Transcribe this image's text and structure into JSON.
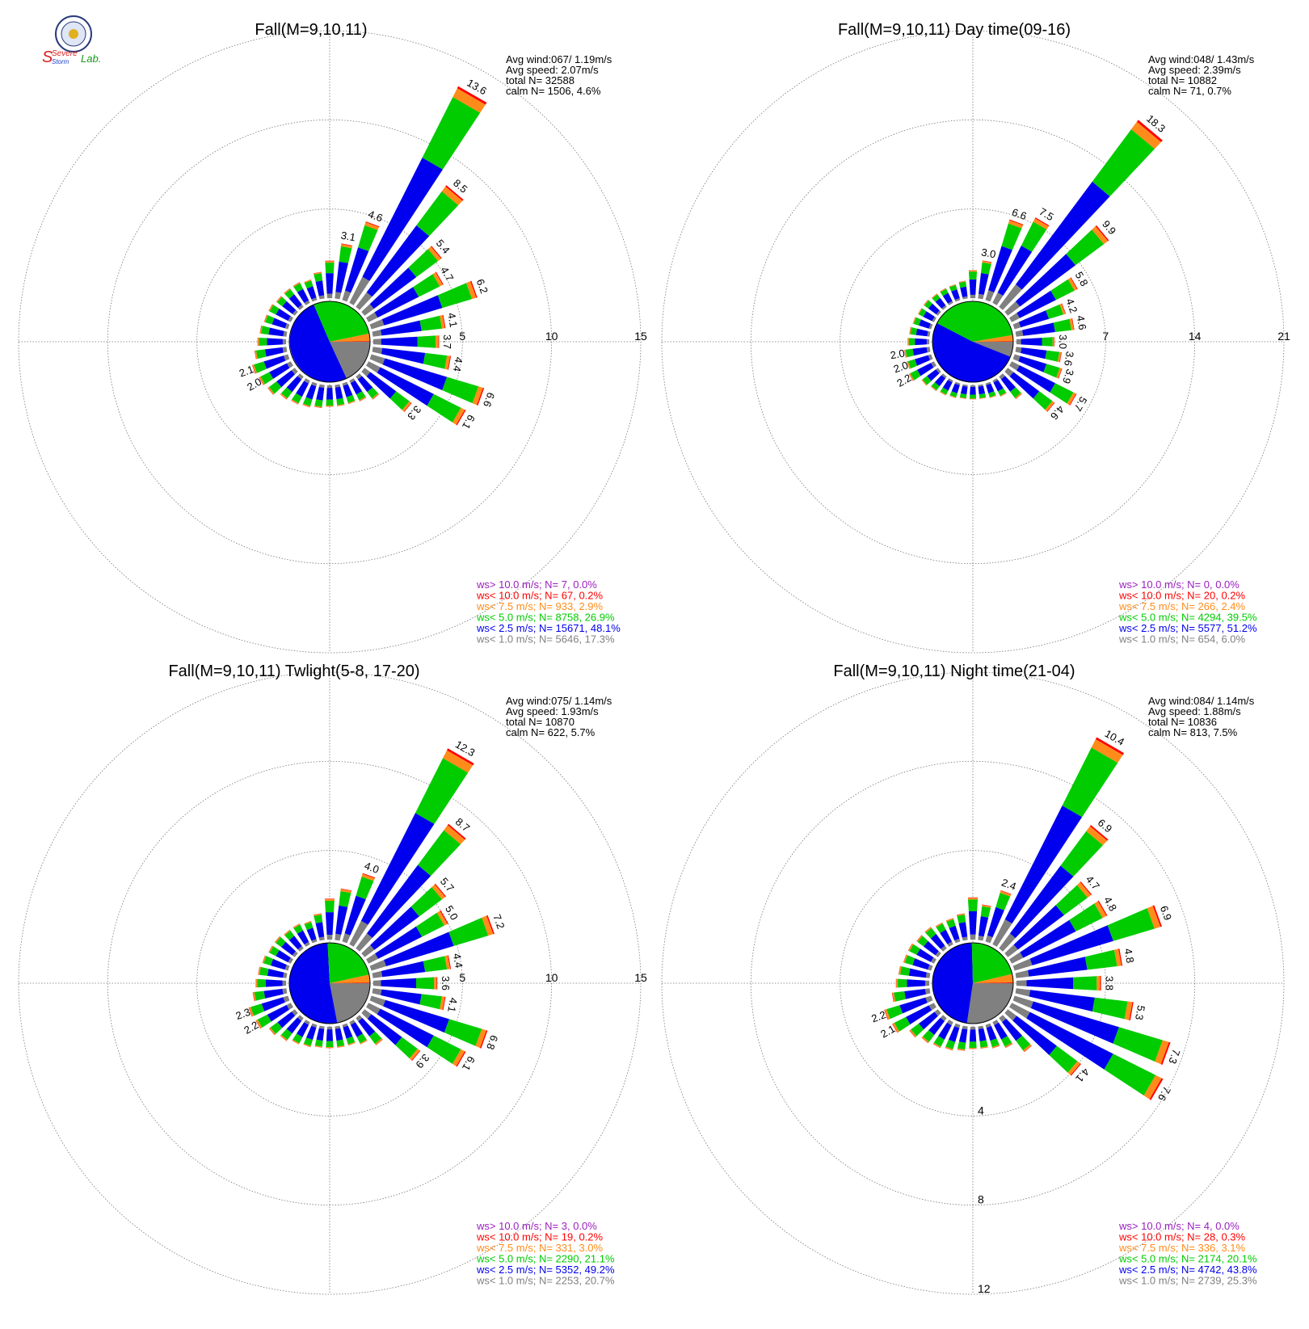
{
  "logo": {
    "text_lines": [
      "Severe",
      "Storm",
      "Lab."
    ],
    "colors": {
      "s": "#d62020",
      "storm": "#1c3cc8",
      "lab": "#1a9a1a",
      "seal": "#2a3a7a"
    }
  },
  "colors": {
    "gt10": "#9b1fbf",
    "lt10": "#ff0000",
    "lt75": "#ff8c1a",
    "lt5": "#00cc00",
    "lt25": "#0000ee",
    "lt1": "#808080",
    "grid": "#777777",
    "text": "#000000"
  },
  "chart_data": [
    {
      "type": "polar-bar",
      "title": "Fall(M=9,10,11)",
      "rings": [
        "5",
        "10",
        "15"
      ],
      "rmax": 15,
      "stats": [
        "Avg wind:067/ 1.19m/s",
        "Avg speed: 2.07m/s",
        "total N=      32588",
        "calm N=   1506,   4.6%"
      ],
      "legend": [
        {
          "text": "ws> 10.0 m/s; N=     7,  0.0%",
          "color": "gt10"
        },
        {
          "text": "ws< 10.0 m/s; N=    67,  0.2%",
          "color": "lt10"
        },
        {
          "text": "ws<  7.5 m/s; N=   933,  2.9%",
          "color": "lt75"
        },
        {
          "text": "ws<  5.0 m/s; N=  8758, 26.9%",
          "color": "lt5"
        },
        {
          "text": "ws<  2.5 m/s; N= 15671, 48.1%",
          "color": "lt25"
        },
        {
          "text": "ws<  1.0 m/s; N=  5646, 17.3%",
          "color": "lt1"
        }
      ],
      "center_pie": [
        17.3,
        48.1,
        26.9,
        2.9,
        0.2,
        0.0
      ],
      "bars": [
        {
          "dir": 10,
          "total": 3.1,
          "label": "3.1"
        },
        {
          "dir": 20,
          "total": 4.6,
          "label": "4.6"
        },
        {
          "dir": 30,
          "total": 13.6,
          "label": "13.6"
        },
        {
          "dir": 40,
          "total": 8.5,
          "label": "8.5"
        },
        {
          "dir": 50,
          "total": 5.4,
          "label": "5.4"
        },
        {
          "dir": 60,
          "total": 4.7,
          "label": "4.7"
        },
        {
          "dir": 70,
          "total": 6.2,
          "label": "6.2"
        },
        {
          "dir": 80,
          "total": 4.1,
          "label": "4.1"
        },
        {
          "dir": 90,
          "total": 3.7,
          "label": "3.7"
        },
        {
          "dir": 100,
          "total": 4.4,
          "label": "4.4"
        },
        {
          "dir": 110,
          "total": 6.6,
          "label": "6.6"
        },
        {
          "dir": 120,
          "total": 6.1,
          "label": "6.1"
        },
        {
          "dir": 130,
          "total": 3.3,
          "label": "3.3"
        },
        {
          "dir": 140,
          "total": 1.6,
          "label": ""
        },
        {
          "dir": 150,
          "total": 1.3,
          "label": ""
        },
        {
          "dir": 160,
          "total": 1.2,
          "label": ""
        },
        {
          "dir": 170,
          "total": 1.2,
          "label": ""
        },
        {
          "dir": 180,
          "total": 1.2,
          "label": ""
        },
        {
          "dir": 190,
          "total": 1.3,
          "label": ""
        },
        {
          "dir": 200,
          "total": 1.4,
          "label": ""
        },
        {
          "dir": 210,
          "total": 1.5,
          "label": ""
        },
        {
          "dir": 220,
          "total": 1.6,
          "label": ""
        },
        {
          "dir": 230,
          "total": 1.9,
          "label": ""
        },
        {
          "dir": 240,
          "total": 2.0,
          "label": "2.0"
        },
        {
          "dir": 250,
          "total": 2.1,
          "label": "2.1"
        },
        {
          "dir": 260,
          "total": 1.8,
          "label": ""
        },
        {
          "dir": 270,
          "total": 1.6,
          "label": ""
        },
        {
          "dir": 280,
          "total": 1.5,
          "label": ""
        },
        {
          "dir": 290,
          "total": 1.4,
          "label": ""
        },
        {
          "dir": 300,
          "total": 1.4,
          "label": ""
        },
        {
          "dir": 310,
          "total": 1.3,
          "label": ""
        },
        {
          "dir": 320,
          "total": 1.3,
          "label": ""
        },
        {
          "dir": 330,
          "total": 1.3,
          "label": ""
        },
        {
          "dir": 340,
          "total": 1.2,
          "label": ""
        },
        {
          "dir": 350,
          "total": 1.5,
          "label": ""
        },
        {
          "dir": 360,
          "total": 2.1,
          "label": ""
        }
      ]
    },
    {
      "type": "polar-bar",
      "title": "Fall(M=9,10,11) Day time(09-16)",
      "rings": [
        "7",
        "14",
        "21"
      ],
      "rmax": 21,
      "stats": [
        "Avg wind:048/ 1.43m/s",
        "Avg speed: 2.39m/s",
        "total N=      10882",
        "calm N=     71,   0.7%"
      ],
      "legend": [
        {
          "text": "ws> 10.0 m/s; N=     0,  0.0%",
          "color": "gt10"
        },
        {
          "text": "ws< 10.0 m/s; N=    20,  0.2%",
          "color": "lt10"
        },
        {
          "text": "ws<  7.5 m/s; N=   266,  2.4%",
          "color": "lt75"
        },
        {
          "text": "ws<  5.0 m/s; N=  4294, 39.5%",
          "color": "lt5"
        },
        {
          "text": "ws<  2.5 m/s; N=  5577, 51.2%",
          "color": "lt25"
        },
        {
          "text": "ws<  1.0 m/s; N=   654,  6.0%",
          "color": "lt1"
        }
      ],
      "center_pie": [
        6.0,
        51.2,
        39.5,
        2.4,
        0.2,
        0.0
      ],
      "bars": [
        {
          "dir": 10,
          "total": 3.0,
          "label": "3.0"
        },
        {
          "dir": 20,
          "total": 6.6,
          "label": "6.6"
        },
        {
          "dir": 30,
          "total": 7.5,
          "label": "7.5"
        },
        {
          "dir": 40,
          "total": 18.3,
          "label": "18.3"
        },
        {
          "dir": 50,
          "total": 9.9,
          "label": "9.9"
        },
        {
          "dir": 60,
          "total": 5.8,
          "label": "5.8"
        },
        {
          "dir": 70,
          "total": 4.2,
          "label": "4.2"
        },
        {
          "dir": 80,
          "total": 4.6,
          "label": "4.6"
        },
        {
          "dir": 90,
          "total": 3.0,
          "label": "3.0"
        },
        {
          "dir": 100,
          "total": 3.6,
          "label": "3.6"
        },
        {
          "dir": 110,
          "total": 3.9,
          "label": "3.9"
        },
        {
          "dir": 120,
          "total": 5.7,
          "label": "5.7"
        },
        {
          "dir": 130,
          "total": 4.6,
          "label": "4.6"
        },
        {
          "dir": 140,
          "total": 2.2,
          "label": ""
        },
        {
          "dir": 150,
          "total": 1.4,
          "label": ""
        },
        {
          "dir": 160,
          "total": 1.2,
          "label": ""
        },
        {
          "dir": 170,
          "total": 1.1,
          "label": ""
        },
        {
          "dir": 180,
          "total": 1.1,
          "label": ""
        },
        {
          "dir": 190,
          "total": 1.1,
          "label": ""
        },
        {
          "dir": 200,
          "total": 1.2,
          "label": ""
        },
        {
          "dir": 210,
          "total": 1.3,
          "label": ""
        },
        {
          "dir": 220,
          "total": 1.4,
          "label": ""
        },
        {
          "dir": 230,
          "total": 1.6,
          "label": ""
        },
        {
          "dir": 240,
          "total": 2.2,
          "label": "2.2"
        },
        {
          "dir": 250,
          "total": 2.0,
          "label": "2.0"
        },
        {
          "dir": 260,
          "total": 2.0,
          "label": "2.0"
        },
        {
          "dir": 270,
          "total": 1.7,
          "label": ""
        },
        {
          "dir": 280,
          "total": 1.6,
          "label": ""
        },
        {
          "dir": 290,
          "total": 1.5,
          "label": ""
        },
        {
          "dir": 300,
          "total": 1.4,
          "label": ""
        },
        {
          "dir": 310,
          "total": 1.4,
          "label": ""
        },
        {
          "dir": 320,
          "total": 1.3,
          "label": ""
        },
        {
          "dir": 330,
          "total": 1.3,
          "label": ""
        },
        {
          "dir": 340,
          "total": 1.3,
          "label": ""
        },
        {
          "dir": 350,
          "total": 1.4,
          "label": ""
        },
        {
          "dir": 360,
          "total": 2.2,
          "label": ""
        }
      ]
    },
    {
      "type": "polar-bar",
      "title": "Fall(M=9,10,11) Twlight(5-8, 17-20)",
      "rings": [
        "5",
        "10",
        "15"
      ],
      "rmax": 15,
      "stats": [
        "Avg wind:075/ 1.14m/s",
        "Avg speed: 1.93m/s",
        "total N=      10870",
        "calm N=    622,   5.7%"
      ],
      "legend": [
        {
          "text": "ws> 10.0 m/s; N=     3,  0.0%",
          "color": "gt10"
        },
        {
          "text": "ws< 10.0 m/s; N=    19,  0.2%",
          "color": "lt10"
        },
        {
          "text": "ws<  7.5 m/s; N=   331,  3.0%",
          "color": "lt75"
        },
        {
          "text": "ws<  5.0 m/s; N=  2290, 21.1%",
          "color": "lt5"
        },
        {
          "text": "ws<  2.5 m/s; N=  5352, 49.2%",
          "color": "lt25"
        },
        {
          "text": "ws<  1.0 m/s; N=  2253, 20.7%",
          "color": "lt1"
        }
      ],
      "center_pie": [
        20.7,
        49.2,
        21.1,
        3.0,
        0.2,
        0.0
      ],
      "bars": [
        {
          "dir": 10,
          "total": 2.9,
          "label": ""
        },
        {
          "dir": 20,
          "total": 4.0,
          "label": "4.0"
        },
        {
          "dir": 30,
          "total": 12.3,
          "label": "12.3"
        },
        {
          "dir": 40,
          "total": 8.7,
          "label": "8.7"
        },
        {
          "dir": 50,
          "total": 5.7,
          "label": "5.7"
        },
        {
          "dir": 60,
          "total": 5.0,
          "label": "5.0"
        },
        {
          "dir": 70,
          "total": 7.2,
          "label": "7.2"
        },
        {
          "dir": 80,
          "total": 4.4,
          "label": "4.4"
        },
        {
          "dir": 90,
          "total": 3.6,
          "label": "3.6"
        },
        {
          "dir": 100,
          "total": 4.1,
          "label": "4.1"
        },
        {
          "dir": 110,
          "total": 6.8,
          "label": "6.8"
        },
        {
          "dir": 120,
          "total": 6.1,
          "label": "6.1"
        },
        {
          "dir": 130,
          "total": 3.9,
          "label": "3.9"
        },
        {
          "dir": 140,
          "total": 1.9,
          "label": ""
        },
        {
          "dir": 150,
          "total": 1.4,
          "label": ""
        },
        {
          "dir": 160,
          "total": 1.2,
          "label": ""
        },
        {
          "dir": 170,
          "total": 1.2,
          "label": ""
        },
        {
          "dir": 180,
          "total": 1.2,
          "label": ""
        },
        {
          "dir": 190,
          "total": 1.2,
          "label": ""
        },
        {
          "dir": 200,
          "total": 1.3,
          "label": ""
        },
        {
          "dir": 210,
          "total": 1.4,
          "label": ""
        },
        {
          "dir": 220,
          "total": 1.6,
          "label": ""
        },
        {
          "dir": 230,
          "total": 1.8,
          "label": ""
        },
        {
          "dir": 240,
          "total": 2.2,
          "label": "2.2"
        },
        {
          "dir": 250,
          "total": 2.3,
          "label": "2.3"
        },
        {
          "dir": 260,
          "total": 1.9,
          "label": ""
        },
        {
          "dir": 270,
          "total": 1.7,
          "label": ""
        },
        {
          "dir": 280,
          "total": 1.6,
          "label": ""
        },
        {
          "dir": 290,
          "total": 1.5,
          "label": ""
        },
        {
          "dir": 300,
          "total": 1.4,
          "label": ""
        },
        {
          "dir": 310,
          "total": 1.4,
          "label": ""
        },
        {
          "dir": 320,
          "total": 1.3,
          "label": ""
        },
        {
          "dir": 330,
          "total": 1.3,
          "label": ""
        },
        {
          "dir": 340,
          "total": 1.2,
          "label": ""
        },
        {
          "dir": 350,
          "total": 1.5,
          "label": ""
        },
        {
          "dir": 360,
          "total": 2.3,
          "label": ""
        }
      ]
    },
    {
      "type": "polar-bar",
      "title": "Fall(M=9,10,11) Night time(21-04)",
      "rings": [
        "4",
        "8",
        "12"
      ],
      "rmax": 12,
      "stats": [
        "Avg wind:084/ 1.14m/s",
        "Avg speed: 1.88m/s",
        "total N=      10836",
        "calm N=    813,   7.5%"
      ],
      "legend": [
        {
          "text": "ws> 10.0 m/s; N=     4,  0.0%",
          "color": "gt10"
        },
        {
          "text": "ws< 10.0 m/s; N=    28,  0.3%",
          "color": "lt10"
        },
        {
          "text": "ws<  7.5 m/s; N=   336,  3.1%",
          "color": "lt75"
        },
        {
          "text": "ws<  5.0 m/s; N=  2174, 20.1%",
          "color": "lt5"
        },
        {
          "text": "ws<  2.5 m/s; N=  4742, 43.8%",
          "color": "lt25"
        },
        {
          "text": "ws<  1.0 m/s; N=  2739, 25.3%",
          "color": "lt1"
        }
      ],
      "center_pie": [
        25.3,
        43.8,
        20.1,
        3.1,
        0.3,
        0.0
      ],
      "bars": [
        {
          "dir": 10,
          "total": 1.6,
          "label": ""
        },
        {
          "dir": 20,
          "total": 2.4,
          "label": "2.4"
        },
        {
          "dir": 30,
          "total": 10.4,
          "label": "10.4"
        },
        {
          "dir": 40,
          "total": 6.9,
          "label": "6.9"
        },
        {
          "dir": 50,
          "total": 4.7,
          "label": "4.7"
        },
        {
          "dir": 60,
          "total": 4.8,
          "label": "4.8"
        },
        {
          "dir": 70,
          "total": 6.9,
          "label": "6.9"
        },
        {
          "dir": 80,
          "total": 4.8,
          "label": "4.8"
        },
        {
          "dir": 90,
          "total": 3.8,
          "label": "3.8"
        },
        {
          "dir": 100,
          "total": 5.3,
          "label": "5.3"
        },
        {
          "dir": 110,
          "total": 7.3,
          "label": "7.3"
        },
        {
          "dir": 120,
          "total": 7.6,
          "label": "7.6"
        },
        {
          "dir": 130,
          "total": 4.1,
          "label": "4.1"
        },
        {
          "dir": 140,
          "total": 1.9,
          "label": ""
        },
        {
          "dir": 150,
          "total": 1.3,
          "label": ""
        },
        {
          "dir": 160,
          "total": 1.1,
          "label": ""
        },
        {
          "dir": 170,
          "total": 1.0,
          "label": ""
        },
        {
          "dir": 180,
          "total": 1.0,
          "label": ""
        },
        {
          "dir": 190,
          "total": 1.1,
          "label": ""
        },
        {
          "dir": 200,
          "total": 1.2,
          "label": ""
        },
        {
          "dir": 210,
          "total": 1.3,
          "label": ""
        },
        {
          "dir": 220,
          "total": 1.4,
          "label": ""
        },
        {
          "dir": 230,
          "total": 1.6,
          "label": ""
        },
        {
          "dir": 240,
          "total": 2.1,
          "label": "2.1"
        },
        {
          "dir": 250,
          "total": 2.2,
          "label": "2.2"
        },
        {
          "dir": 260,
          "total": 1.7,
          "label": ""
        },
        {
          "dir": 270,
          "total": 1.5,
          "label": ""
        },
        {
          "dir": 280,
          "total": 1.4,
          "label": ""
        },
        {
          "dir": 290,
          "total": 1.3,
          "label": ""
        },
        {
          "dir": 300,
          "total": 1.3,
          "label": ""
        },
        {
          "dir": 310,
          "total": 1.2,
          "label": ""
        },
        {
          "dir": 320,
          "total": 1.2,
          "label": ""
        },
        {
          "dir": 330,
          "total": 1.1,
          "label": ""
        },
        {
          "dir": 340,
          "total": 1.1,
          "label": ""
        },
        {
          "dir": 350,
          "total": 1.2,
          "label": ""
        },
        {
          "dir": 360,
          "total": 1.9,
          "label": ""
        }
      ]
    }
  ]
}
